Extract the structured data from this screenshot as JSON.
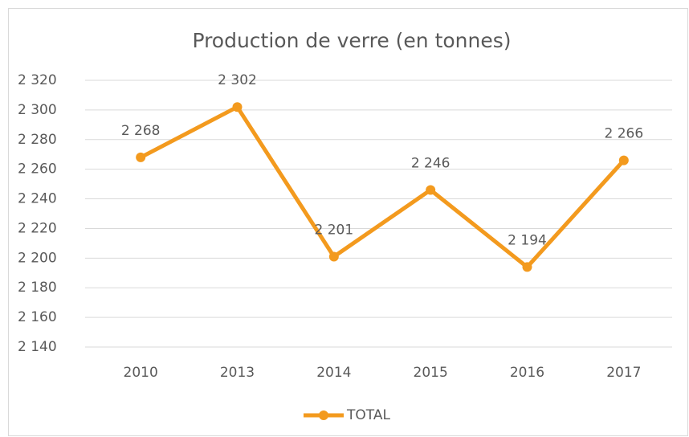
{
  "chart_data": {
    "type": "line",
    "title": "Production de verre (en tonnes)",
    "categories": [
      "2010",
      "2013",
      "2014",
      "2015",
      "2016",
      "2017"
    ],
    "series": [
      {
        "name": "TOTAL",
        "color": "#f39a1e",
        "values": [
          2268,
          2302,
          2201,
          2246,
          2194,
          2266
        ],
        "value_labels": [
          "2 268",
          "2 302",
          "2 201",
          "2 246",
          "2 194",
          "2 266"
        ]
      }
    ],
    "ylim": [
      2140,
      2320
    ],
    "yticks": [
      {
        "value": 2140,
        "label": "2 140"
      },
      {
        "value": 2160,
        "label": "2 160"
      },
      {
        "value": 2180,
        "label": "2 180"
      },
      {
        "value": 2200,
        "label": "2 200"
      },
      {
        "value": 2220,
        "label": "2 220"
      },
      {
        "value": 2240,
        "label": "2 240"
      },
      {
        "value": 2260,
        "label": "2 260"
      },
      {
        "value": 2280,
        "label": "2 280"
      },
      {
        "value": 2300,
        "label": "2 300"
      },
      {
        "value": 2320,
        "label": "2 320"
      }
    ],
    "grid": true,
    "legend": "bottom"
  }
}
